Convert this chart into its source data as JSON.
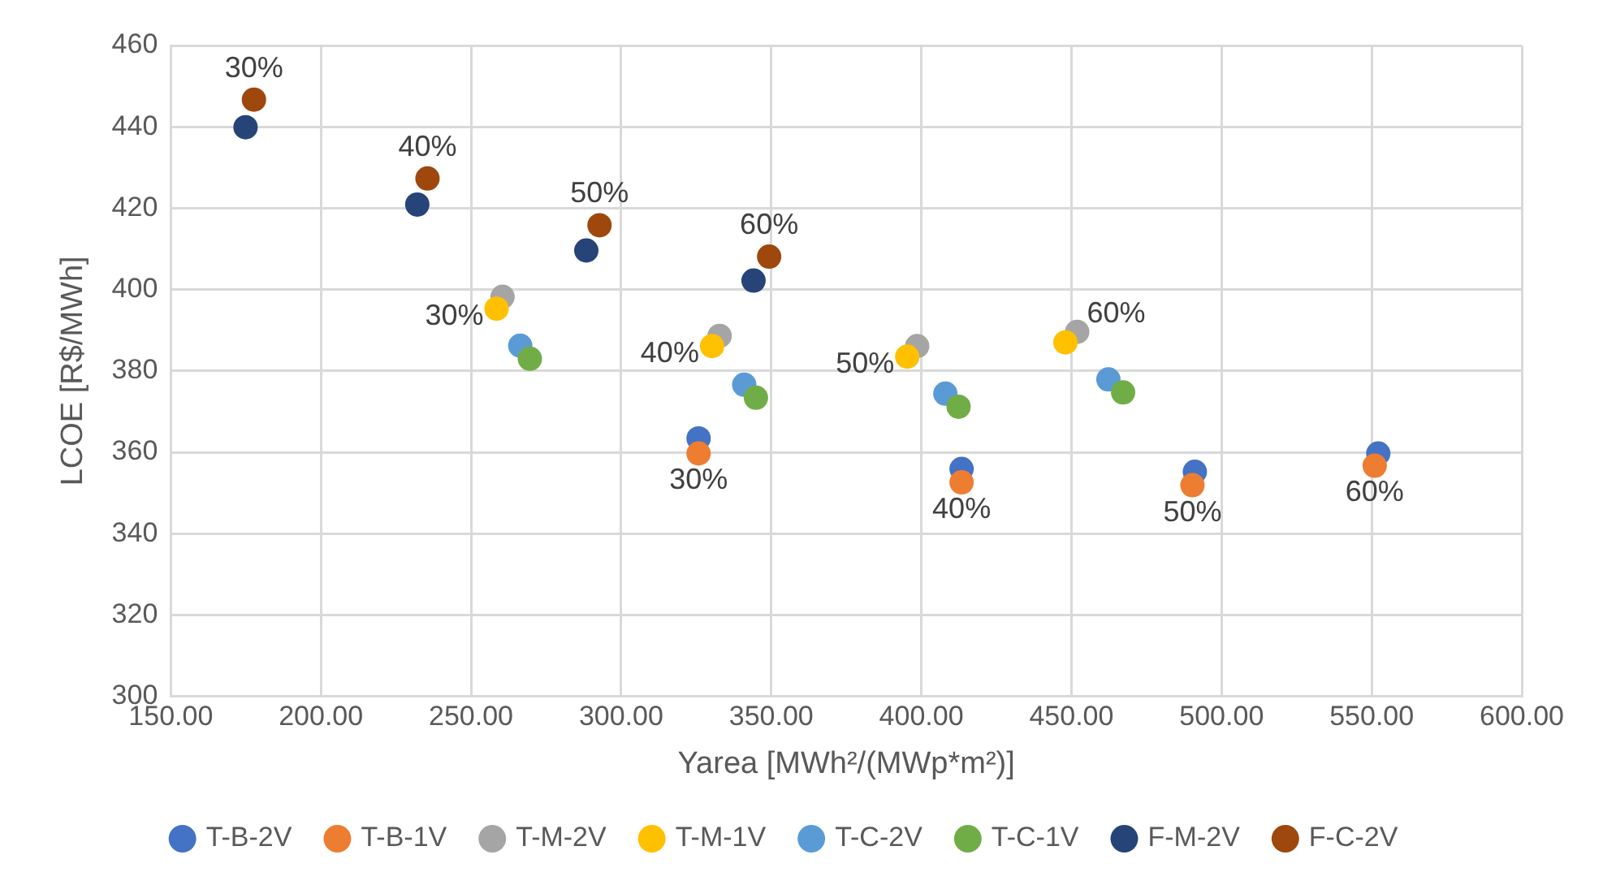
{
  "chart_data": {
    "type": "scatter",
    "xlabel": "Yarea [MWh²/(MWp*m²)]",
    "ylabel": "LCOE [R$/MWh]",
    "xlim": [
      150,
      600
    ],
    "xticks": [
      {
        "value": 150,
        "label": "150.00"
      },
      {
        "value": 200,
        "label": "200.00"
      },
      {
        "value": 250,
        "label": "250.00"
      },
      {
        "value": 300,
        "label": "300.00"
      },
      {
        "value": 350,
        "label": "350.00"
      },
      {
        "value": 400,
        "label": "400.00"
      },
      {
        "value": 450,
        "label": "450.00"
      },
      {
        "value": 500,
        "label": "500.00"
      },
      {
        "value": 550,
        "label": "550.00"
      },
      {
        "value": 600,
        "label": "600.00"
      }
    ],
    "ylim": [
      300,
      460
    ],
    "yticks": [
      300,
      320,
      340,
      360,
      380,
      400,
      420,
      440,
      460
    ],
    "grid": true,
    "legend": "bottom",
    "marker": "circle",
    "annotations": [
      {
        "text": "30%",
        "x": 177.7,
        "y": 446.7
      },
      {
        "text": "40%",
        "x": 235.5,
        "y": 427.3
      },
      {
        "text": "50%",
        "x": 292.8,
        "y": 415.8
      },
      {
        "text": "60%",
        "x": 349.3,
        "y": 408.1
      },
      {
        "text": "30%",
        "x": 325.8,
        "y": 359.7
      },
      {
        "text": "40%",
        "x": 413.4,
        "y": 352.6
      },
      {
        "text": "50%",
        "x": 490.3,
        "y": 351.9
      },
      {
        "text": "60%",
        "x": 551,
        "y": 356.7
      },
      {
        "text": "30%",
        "x": 258.5,
        "y": 395.3
      },
      {
        "text": "40%",
        "x": 330.3,
        "y": 386.1
      },
      {
        "text": "50%",
        "x": 395.3,
        "y": 383.5
      },
      {
        "text": "60%",
        "x": 451.9,
        "y": 389.6
      }
    ],
    "series": [
      {
        "name": "T-B-2V",
        "color": "#4472c4",
        "x": [
          325.8,
          413.4,
          491.1,
          552.2
        ],
        "values": [
          363.4,
          355.9,
          355.2,
          359.7
        ]
      },
      {
        "name": "T-B-1V",
        "color": "#ed7d31",
        "x": [
          325.8,
          413.4,
          490.3,
          551
        ],
        "values": [
          359.7,
          352.6,
          351.9,
          356.7
        ]
      },
      {
        "name": "T-M-2V",
        "color": "#a5a5a5",
        "x": [
          260.5,
          332.8,
          398.6,
          451.9
        ],
        "values": [
          398.2,
          388.6,
          386.1,
          389.6
        ]
      },
      {
        "name": "T-M-1V",
        "color": "#ffc000",
        "x": [
          258.5,
          330.3,
          395.3,
          448
        ],
        "values": [
          395.3,
          386.1,
          383.5,
          387
        ]
      },
      {
        "name": "T-C-2V",
        "color": "#5b9bd5",
        "x": [
          266.4,
          341,
          408,
          462.3
        ],
        "values": [
          386.2,
          376.6,
          374.4,
          377.9
        ]
      },
      {
        "name": "T-C-1V",
        "color": "#70ad47",
        "x": [
          269.6,
          344.9,
          412.4,
          467.2
        ],
        "values": [
          383,
          373.4,
          371.2,
          374.7
        ]
      },
      {
        "name": "F-M-2V",
        "color": "#264478",
        "x": [
          174.9,
          232.1,
          288.4,
          344.1
        ],
        "values": [
          439.9,
          420.9,
          409.6,
          402.2
        ]
      },
      {
        "name": "F-C-2V",
        "color": "#9e480e",
        "x": [
          177.7,
          235.5,
          292.8,
          349.3
        ],
        "values": [
          446.7,
          427.3,
          415.8,
          408.1
        ]
      }
    ]
  }
}
